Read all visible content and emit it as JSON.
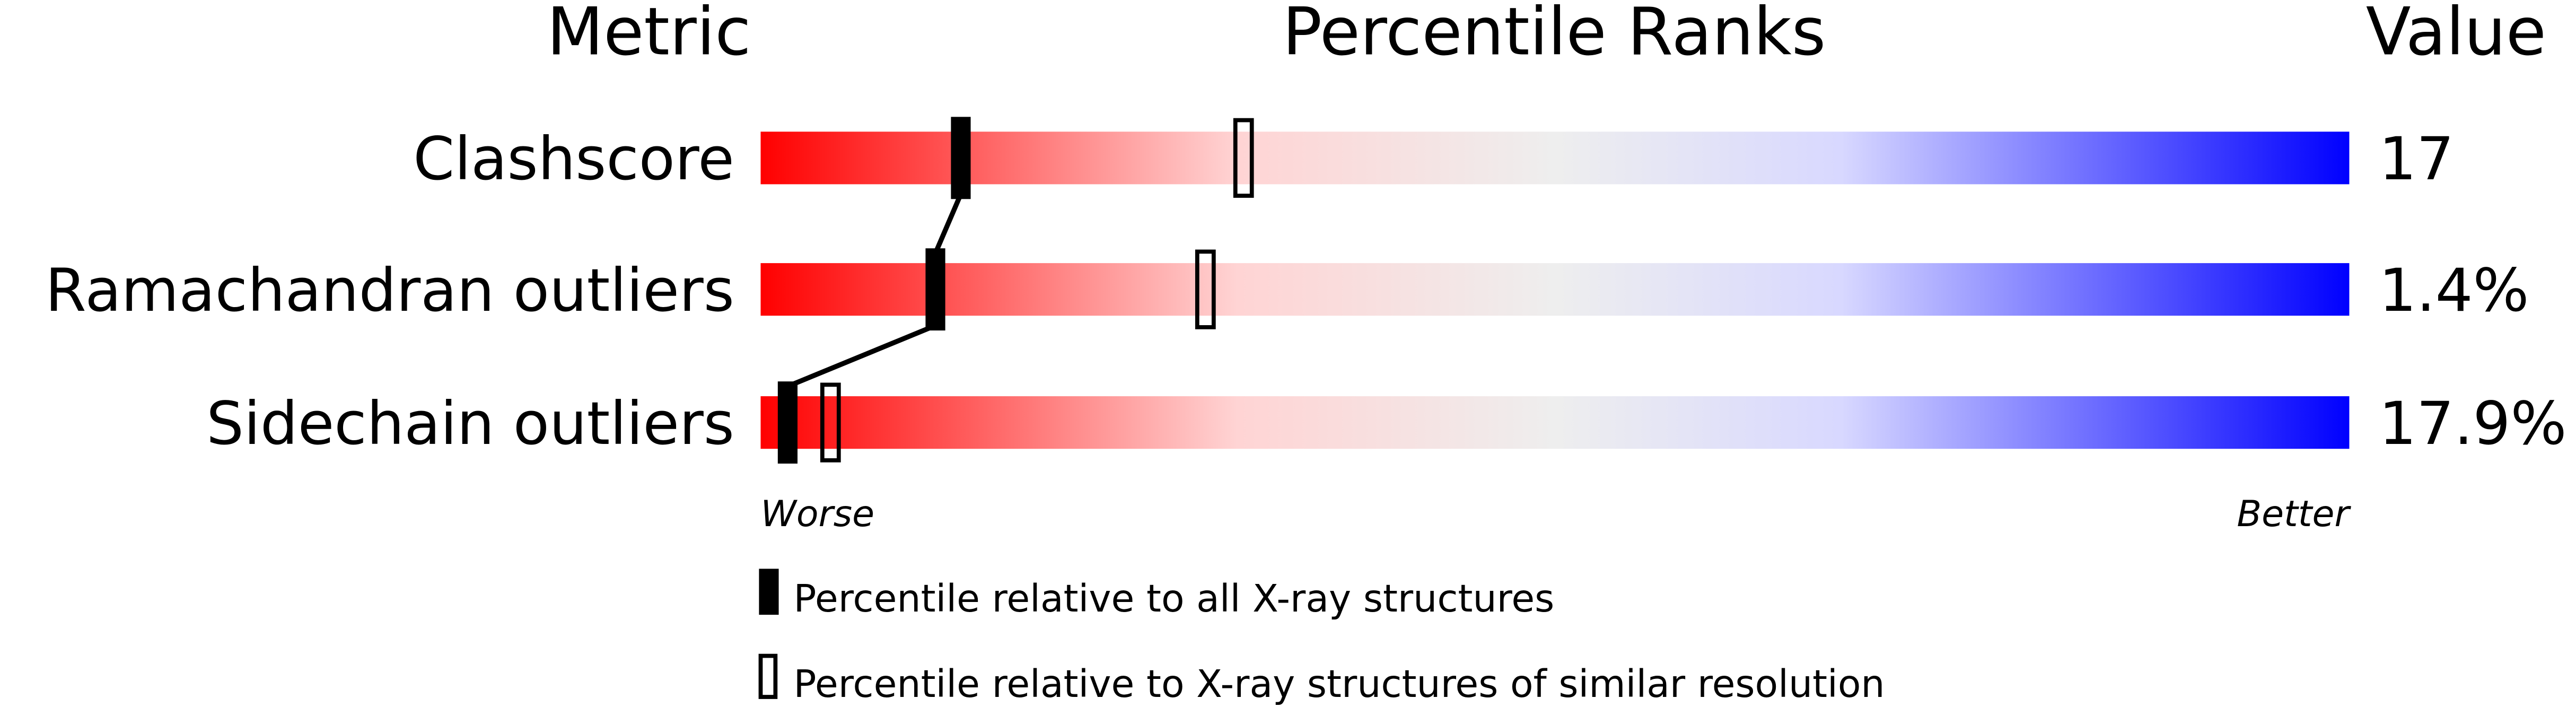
{
  "chart_data": {
    "type": "percentile-slider",
    "headers": {
      "metric": "Metric",
      "ranks": "Percentile Ranks",
      "value": "Value"
    },
    "xlim": [
      0,
      100
    ],
    "axis_labels": {
      "left": "Worse",
      "right": "Better"
    },
    "gradient_colors": [
      "#ff0000",
      "#ffd0d0",
      "#eeeeee",
      "#d8d8ff",
      "#0000ff"
    ],
    "rows": [
      {
        "metric": "Clashscore",
        "value": "17",
        "percentile_all": 12.6,
        "percentile_similar": 30.4
      },
      {
        "metric": "Ramachandran outliers",
        "value": "1.4%",
        "percentile_all": 11.0,
        "percentile_similar": 28.0
      },
      {
        "metric": "Sidechain outliers",
        "value": "17.9%",
        "percentile_all": 1.7,
        "percentile_similar": 4.4
      }
    ],
    "legend": [
      {
        "marker": "filled",
        "label": "Percentile relative to all X-ray structures"
      },
      {
        "marker": "open",
        "label": "Percentile relative to X-ray structures of similar resolution"
      }
    ]
  }
}
